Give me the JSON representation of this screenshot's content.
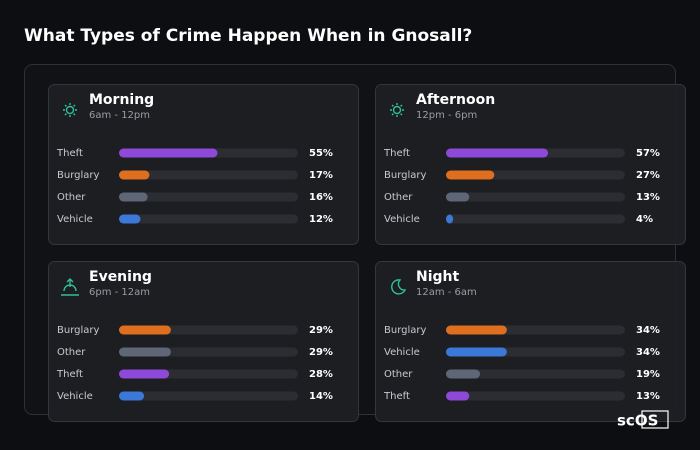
{
  "title": "What Types of Crime Happen When in Gnosall?",
  "logo": "scOS",
  "chart_data": [
    {
      "type": "bar",
      "orientation": "horizontal",
      "title": "Morning",
      "subtitle": "6am - 12pm",
      "categories": [
        "Theft",
        "Burglary",
        "Other",
        "Vehicle"
      ],
      "values": [
        55,
        17,
        16,
        12
      ],
      "value_labels": [
        "55%",
        "17%",
        "16%",
        "12%"
      ],
      "colors": [
        "#8e49d8",
        "#de6f1f",
        "#5f6777",
        "#3b78d8"
      ],
      "xlim": [
        0,
        100
      ]
    },
    {
      "type": "bar",
      "orientation": "horizontal",
      "title": "Afternoon",
      "subtitle": "12pm - 6pm",
      "categories": [
        "Theft",
        "Burglary",
        "Other",
        "Vehicle"
      ],
      "values": [
        57,
        27,
        13,
        4
      ],
      "value_labels": [
        "57%",
        "27%",
        "13%",
        "4%"
      ],
      "colors": [
        "#8e49d8",
        "#de6f1f",
        "#5f6777",
        "#3b78d8"
      ],
      "xlim": [
        0,
        100
      ]
    },
    {
      "type": "bar",
      "orientation": "horizontal",
      "title": "Evening",
      "subtitle": "6pm - 12am",
      "categories": [
        "Burglary",
        "Other",
        "Theft",
        "Vehicle"
      ],
      "values": [
        29,
        29,
        28,
        14
      ],
      "value_labels": [
        "29%",
        "29%",
        "28%",
        "14%"
      ],
      "colors": [
        "#de6f1f",
        "#5f6777",
        "#8e49d8",
        "#3b78d8"
      ],
      "xlim": [
        0,
        100
      ]
    },
    {
      "type": "bar",
      "orientation": "horizontal",
      "title": "Night",
      "subtitle": "12am - 6am",
      "categories": [
        "Burglary",
        "Vehicle",
        "Other",
        "Theft"
      ],
      "values": [
        34,
        34,
        19,
        13
      ],
      "value_labels": [
        "34%",
        "34%",
        "19%",
        "13%"
      ],
      "colors": [
        "#de6f1f",
        "#3b78d8",
        "#5f6777",
        "#8e49d8"
      ],
      "xlim": [
        0,
        100
      ]
    }
  ]
}
